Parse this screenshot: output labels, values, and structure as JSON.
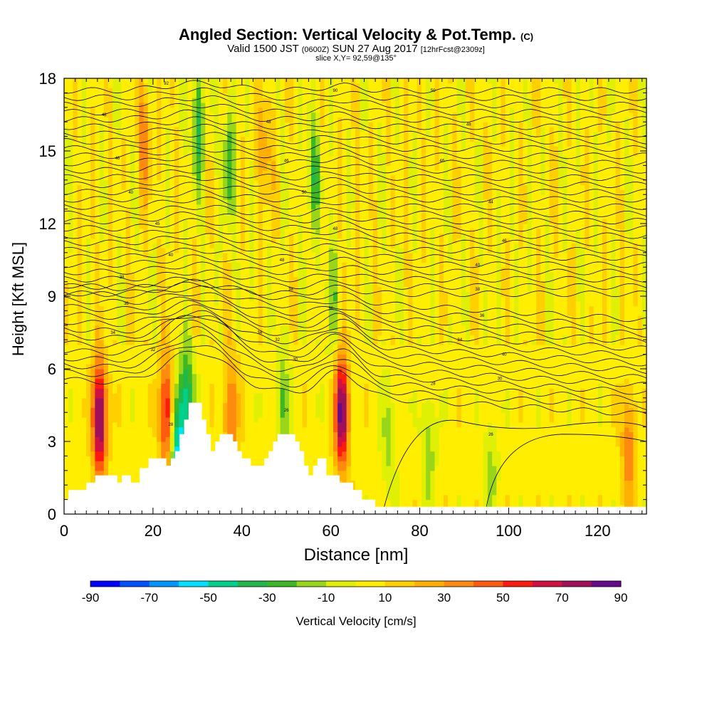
{
  "title": {
    "main": "Angled Section: Vertical Velocity & Pot.Temp.",
    "main_unit": "(C)",
    "valid_a": "Valid 1500 JST",
    "valid_b": "(0600Z)",
    "valid_c": "SUN 27 Aug 2017",
    "valid_d": "[12hrFcst@2309z]",
    "slice": "slice X,Y= 92,59@135°"
  },
  "chart_data": {
    "type": "heatmap",
    "xlabel": "Distance [nm]",
    "ylabel": "Height [Kft MSL]",
    "xlim": [
      0,
      131
    ],
    "ylim": [
      0,
      18
    ],
    "xticks": [
      0,
      20,
      40,
      60,
      80,
      100,
      120
    ],
    "yticks": [
      0,
      3,
      6,
      9,
      12,
      15,
      18
    ],
    "colorbar": {
      "label": "Vertical Velocity [cm/s]",
      "range": [
        -90,
        90
      ],
      "ticks": [
        -90,
        -70,
        -50,
        -30,
        -10,
        10,
        30,
        50,
        70,
        90
      ],
      "colors": [
        "#0000ff",
        "#0050ff",
        "#0096ff",
        "#00e1ff",
        "#00d08a",
        "#20b84a",
        "#3cb826",
        "#99d61a",
        "#dff005",
        "#ffee00",
        "#ffd000",
        "#ffb000",
        "#ff8a10",
        "#ff5a10",
        "#ff1a10",
        "#d01040",
        "#a0105a",
        "#640a8a"
      ]
    },
    "background_value": 5,
    "velocity_features": [
      {
        "x": 8,
        "z": 4.0,
        "w": 85
      },
      {
        "x": 23,
        "z": 4.2,
        "w": 60
      },
      {
        "x": 25.5,
        "z": 2.7,
        "w": -60
      },
      {
        "x": 27.5,
        "z": 4.8,
        "w": -45
      },
      {
        "x": 37.5,
        "z": 4.2,
        "w": 40
      },
      {
        "x": 49,
        "z": 4.6,
        "w": -25
      },
      {
        "x": 62.5,
        "z": 4.2,
        "w": 80
      },
      {
        "x": 73,
        "z": 3.0,
        "w": -18
      },
      {
        "x": 82,
        "z": 2.8,
        "w": -22
      },
      {
        "x": 96,
        "z": 2.0,
        "w": -18
      },
      {
        "x": 127,
        "z": 2.8,
        "w": 35
      },
      {
        "x": 18,
        "z": 15.5,
        "w": 30
      },
      {
        "x": 30,
        "z": 16,
        "w": -35
      },
      {
        "x": 37,
        "z": 14.5,
        "w": -30
      },
      {
        "x": 45,
        "z": 15,
        "w": 25
      },
      {
        "x": 56,
        "z": 14,
        "w": -30
      },
      {
        "x": 60,
        "z": 9,
        "w": -20
      }
    ],
    "terrain": [
      [
        0,
        0.6
      ],
      [
        1,
        0.6
      ],
      [
        1,
        1.0
      ],
      [
        5,
        1.0
      ],
      [
        5,
        1.3
      ],
      [
        7,
        1.3
      ],
      [
        7,
        1.6
      ],
      [
        12,
        1.6
      ],
      [
        12,
        1.3
      ],
      [
        13,
        1.3
      ],
      [
        13,
        1.6
      ],
      [
        15,
        1.6
      ],
      [
        15,
        1.3
      ],
      [
        17,
        1.3
      ],
      [
        17,
        1.9
      ],
      [
        19,
        1.9
      ],
      [
        19,
        2.3
      ],
      [
        23,
        2.3
      ],
      [
        23,
        2.0
      ],
      [
        24,
        2.0
      ],
      [
        24,
        2.3
      ],
      [
        25,
        2.3
      ],
      [
        25,
        2.6
      ],
      [
        26,
        2.6
      ],
      [
        26,
        3.3
      ],
      [
        27,
        3.3
      ],
      [
        27,
        3.9
      ],
      [
        28,
        3.9
      ],
      [
        28,
        4.6
      ],
      [
        31,
        4.6
      ],
      [
        31,
        3.9
      ],
      [
        32,
        3.9
      ],
      [
        32,
        3.3
      ],
      [
        33,
        3.3
      ],
      [
        33,
        2.6
      ],
      [
        34,
        2.6
      ],
      [
        34,
        3.0
      ],
      [
        35,
        3.0
      ],
      [
        35,
        3.3
      ],
      [
        38,
        3.3
      ],
      [
        38,
        3.0
      ],
      [
        39,
        3.0
      ],
      [
        39,
        2.6
      ],
      [
        40,
        2.6
      ],
      [
        40,
        2.3
      ],
      [
        42,
        2.3
      ],
      [
        42,
        2.0
      ],
      [
        45,
        2.0
      ],
      [
        45,
        2.3
      ],
      [
        46,
        2.3
      ],
      [
        46,
        2.6
      ],
      [
        47,
        2.6
      ],
      [
        47,
        3.0
      ],
      [
        48,
        3.0
      ],
      [
        48,
        3.3
      ],
      [
        52,
        3.3
      ],
      [
        52,
        3.0
      ],
      [
        53,
        3.0
      ],
      [
        53,
        2.6
      ],
      [
        54,
        2.6
      ],
      [
        54,
        2.0
      ],
      [
        55,
        2.0
      ],
      [
        55,
        1.6
      ],
      [
        56,
        1.6
      ],
      [
        56,
        2.0
      ],
      [
        57,
        2.0
      ],
      [
        57,
        2.3
      ],
      [
        59,
        2.3
      ],
      [
        59,
        1.6
      ],
      [
        62,
        1.6
      ],
      [
        62,
        1.3
      ],
      [
        65,
        1.3
      ],
      [
        65,
        1.0
      ],
      [
        67,
        1.0
      ],
      [
        67,
        0.6
      ],
      [
        70,
        0.6
      ],
      [
        70,
        0.3
      ],
      [
        131,
        0.3
      ]
    ],
    "theta_levels": [
      [
        1.5,
        1,
        4.9
      ],
      [
        1.5,
        1,
        5.2
      ],
      [
        1.5,
        1,
        5.5
      ],
      [
        1.5,
        1,
        5.8
      ],
      [
        1.5,
        1,
        6.1
      ],
      [
        1.5,
        1,
        6.4
      ],
      [
        1.2,
        0.9,
        6.7
      ],
      [
        1.0,
        0.8,
        7.0
      ],
      [
        0.9,
        0.7,
        7.3
      ],
      [
        0.8,
        0.6,
        7.6
      ],
      [
        0.7,
        0.5,
        7.9
      ],
      [
        0.6,
        0.4,
        8.2
      ],
      [
        0.5,
        0.35,
        8.5
      ],
      [
        0.45,
        0.3,
        8.8
      ],
      [
        0.4,
        0.25,
        9.1
      ],
      [
        0.35,
        0.2,
        9.4
      ],
      [
        0.3,
        0.2,
        9.7
      ],
      [
        0.3,
        0.2,
        10.0
      ],
      [
        0.3,
        0.2,
        10.3
      ],
      [
        0.3,
        0.2,
        10.6
      ],
      [
        0.3,
        0.2,
        10.9
      ],
      [
        0.3,
        0.2,
        11.2
      ],
      [
        0.3,
        0.2,
        11.5
      ],
      [
        0.3,
        0.2,
        11.8
      ],
      [
        0.3,
        0.2,
        12.1
      ],
      [
        0.3,
        0.2,
        12.4
      ],
      [
        0.3,
        0.2,
        12.7
      ],
      [
        0.3,
        0.2,
        13.0
      ],
      [
        0.3,
        0.2,
        13.3
      ],
      [
        0.3,
        0.2,
        13.6
      ],
      [
        0.3,
        0.2,
        13.9
      ],
      [
        0.3,
        0.2,
        14.2
      ],
      [
        0.3,
        0.2,
        14.5
      ],
      [
        0.3,
        0.2,
        14.8
      ],
      [
        0.3,
        0.2,
        15.1
      ],
      [
        0.3,
        0.2,
        15.4
      ],
      [
        0.3,
        0.2,
        15.7
      ],
      [
        0.3,
        0.2,
        16.0
      ],
      [
        0.3,
        0.2,
        16.3
      ],
      [
        0.3,
        0.2,
        16.6
      ],
      [
        0.3,
        0.2,
        16.9
      ],
      [
        0.3,
        0.2,
        17.2
      ],
      [
        0.3,
        0.2,
        17.5
      ]
    ],
    "contour_labels": [
      {
        "x": 23,
        "z": 17.8,
        "text": "92"
      },
      {
        "x": 9,
        "z": 16.5,
        "text": "48"
      },
      {
        "x": 12,
        "z": 14.7,
        "text": "46"
      },
      {
        "x": 15,
        "z": 13.3,
        "text": "40"
      },
      {
        "x": 21,
        "z": 12.0,
        "text": "45"
      },
      {
        "x": 24,
        "z": 10.7,
        "text": "40"
      },
      {
        "x": 13,
        "z": 9.8,
        "text": "38"
      },
      {
        "x": 14,
        "z": 8.7,
        "text": "36"
      },
      {
        "x": 11,
        "z": 7.5,
        "text": "34"
      },
      {
        "x": 20,
        "z": 6.8,
        "text": "32"
      },
      {
        "x": 46,
        "z": 16.2,
        "text": "48"
      },
      {
        "x": 50,
        "z": 14.6,
        "text": "46"
      },
      {
        "x": 54,
        "z": 13.3,
        "text": "50"
      },
      {
        "x": 61,
        "z": 17.5,
        "text": "90"
      },
      {
        "x": 61,
        "z": 11.8,
        "text": "48"
      },
      {
        "x": 49,
        "z": 10.5,
        "text": "48"
      },
      {
        "x": 51,
        "z": 9.3,
        "text": "38"
      },
      {
        "x": 60,
        "z": 8.5,
        "text": "36"
      },
      {
        "x": 44,
        "z": 7.5,
        "text": "34"
      },
      {
        "x": 48,
        "z": 7.2,
        "text": "32"
      },
      {
        "x": 52,
        "z": 6.4,
        "text": "30"
      },
      {
        "x": 50,
        "z": 4.3,
        "text": "26"
      },
      {
        "x": 24,
        "z": 3.7,
        "text": "28"
      },
      {
        "x": 83,
        "z": 17.5,
        "text": "50"
      },
      {
        "x": 91,
        "z": 16.1,
        "text": "48"
      },
      {
        "x": 85,
        "z": 14.6,
        "text": "46"
      },
      {
        "x": 96,
        "z": 12.9,
        "text": "44"
      },
      {
        "x": 99,
        "z": 11.3,
        "text": "46"
      },
      {
        "x": 93,
        "z": 10.3,
        "text": "40"
      },
      {
        "x": 93,
        "z": 9.3,
        "text": "38"
      },
      {
        "x": 94,
        "z": 8.2,
        "text": "36"
      },
      {
        "x": 89,
        "z": 7.2,
        "text": "34"
      },
      {
        "x": 99,
        "z": 6.6,
        "text": "40"
      },
      {
        "x": 98,
        "z": 5.6,
        "text": "30"
      },
      {
        "x": 83,
        "z": 5.4,
        "text": "28"
      },
      {
        "x": 96,
        "z": 3.3,
        "text": "26"
      }
    ]
  }
}
